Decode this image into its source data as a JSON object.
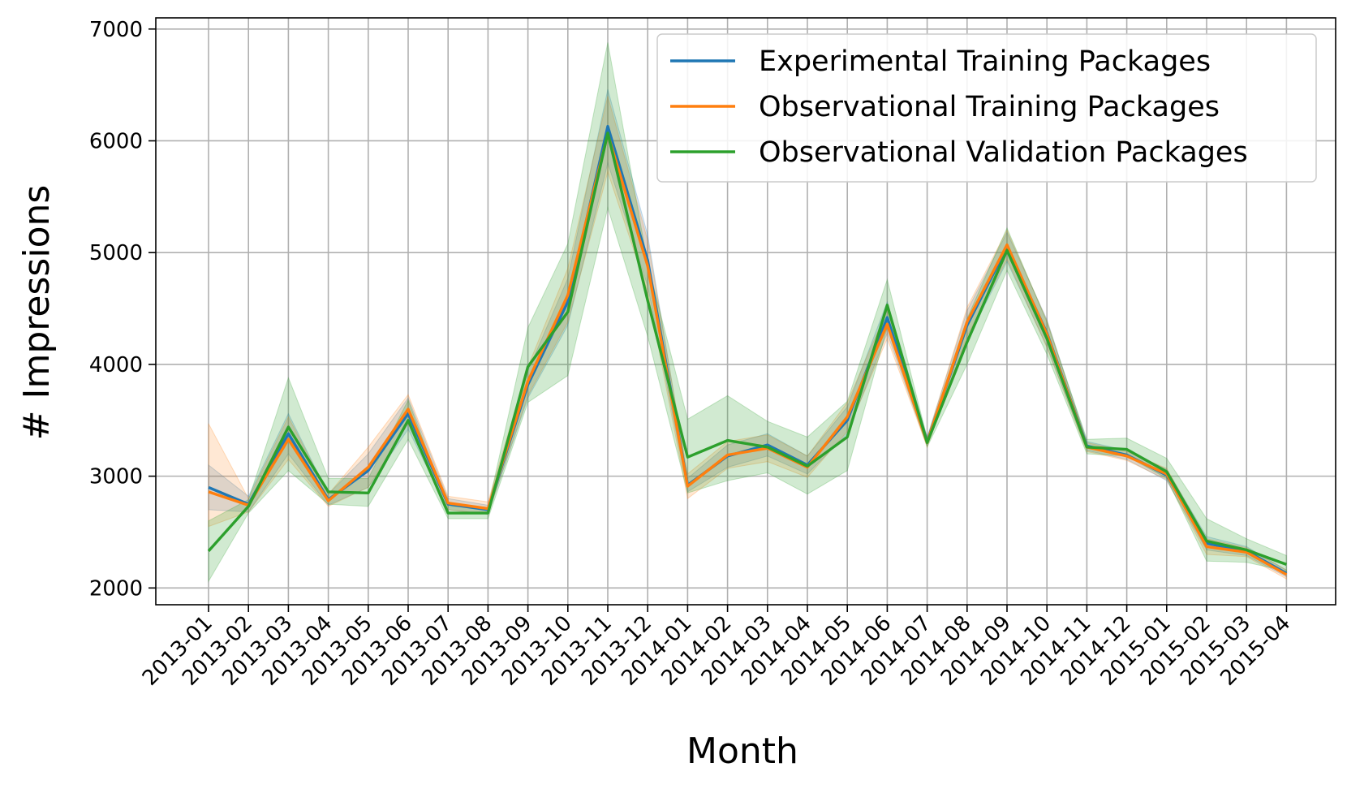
{
  "chart_data": {
    "type": "line",
    "title": "",
    "xlabel": "Month",
    "ylabel": "# Impressions",
    "ylim": [
      1850,
      7100
    ],
    "yticks": [
      2000,
      3000,
      4000,
      5000,
      6000,
      7000
    ],
    "grid": true,
    "legend_position": "top-right",
    "x": [
      "2013-01",
      "2013-02",
      "2013-03",
      "2013-04",
      "2013-05",
      "2013-06",
      "2013-07",
      "2013-08",
      "2013-09",
      "2013-10",
      "2013-11",
      "2013-12",
      "2014-01",
      "2014-02",
      "2014-03",
      "2014-04",
      "2014-05",
      "2014-06",
      "2014-07",
      "2014-08",
      "2014-09",
      "2014-10",
      "2014-11",
      "2014-12",
      "2015-01",
      "2015-02",
      "2015-03",
      "2015-04"
    ],
    "series": [
      {
        "name": "Experimental Training Packages",
        "color": "#1f77b4",
        "values": [
          2900,
          2750,
          3380,
          2790,
          3050,
          3560,
          2750,
          2700,
          3820,
          4560,
          6130,
          4930,
          2920,
          3180,
          3280,
          3100,
          3500,
          4420,
          3310,
          4350,
          5050,
          4280,
          3270,
          3190,
          3010,
          2400,
          2330,
          2130
        ],
        "lower": [
          2700,
          2680,
          3200,
          2740,
          2900,
          3420,
          2700,
          2660,
          3700,
          4350,
          5800,
          4700,
          2860,
          3080,
          3180,
          3020,
          3380,
          4280,
          3270,
          4220,
          4920,
          4160,
          3230,
          3150,
          2960,
          2340,
          2290,
          2100
        ],
        "upper": [
          3100,
          2820,
          3560,
          2840,
          3200,
          3700,
          2800,
          2740,
          3940,
          4770,
          6460,
          5160,
          2980,
          3280,
          3380,
          3180,
          3620,
          4560,
          3350,
          4480,
          5180,
          4400,
          3310,
          3230,
          3060,
          2460,
          2370,
          2160
        ]
      },
      {
        "name": "Observational Training Packages",
        "color": "#ff7f0e",
        "values": [
          2860,
          2740,
          3330,
          2780,
          3080,
          3600,
          2760,
          2710,
          3850,
          4620,
          6060,
          4880,
          2910,
          3190,
          3250,
          3080,
          3530,
          4360,
          3300,
          4380,
          5070,
          4270,
          3260,
          3180,
          3020,
          2370,
          2320,
          2120
        ],
        "lower": [
          2550,
          2680,
          3150,
          2730,
          2900,
          3470,
          2700,
          2660,
          3720,
          4380,
          5720,
          4650,
          2800,
          3070,
          3130,
          2990,
          3400,
          4230,
          3260,
          4250,
          4940,
          4150,
          3220,
          3140,
          2970,
          2300,
          2280,
          2080
        ],
        "upper": [
          3470,
          2800,
          3530,
          2840,
          3260,
          3730,
          2820,
          2770,
          3980,
          4860,
          6400,
          5110,
          3020,
          3310,
          3370,
          3180,
          3660,
          4490,
          3340,
          4510,
          5200,
          4390,
          3300,
          3220,
          3070,
          2440,
          2360,
          2160
        ]
      },
      {
        "name": "Observational Validation Packages",
        "color": "#2ca02c",
        "values": [
          2330,
          2730,
          3440,
          2860,
          2850,
          3500,
          2670,
          2670,
          3980,
          4470,
          6070,
          4570,
          3170,
          3320,
          3260,
          3090,
          3350,
          4530,
          3300,
          4200,
          5020,
          4230,
          3260,
          3240,
          3040,
          2420,
          2340,
          2210
        ],
        "lower": [
          2060,
          2670,
          3050,
          2750,
          2730,
          3330,
          2620,
          2620,
          3660,
          3900,
          5400,
          4250,
          2850,
          2960,
          3030,
          2840,
          3050,
          4330,
          3260,
          4000,
          4840,
          4090,
          3200,
          3180,
          2980,
          2240,
          2230,
          2150
        ],
        "upper": [
          2600,
          2790,
          3880,
          2980,
          2980,
          3680,
          2730,
          2720,
          4330,
          5080,
          6880,
          4900,
          3510,
          3720,
          3490,
          3350,
          3670,
          4760,
          3340,
          4410,
          5220,
          4380,
          3330,
          3340,
          3160,
          2620,
          2440,
          2290
        ]
      }
    ]
  }
}
